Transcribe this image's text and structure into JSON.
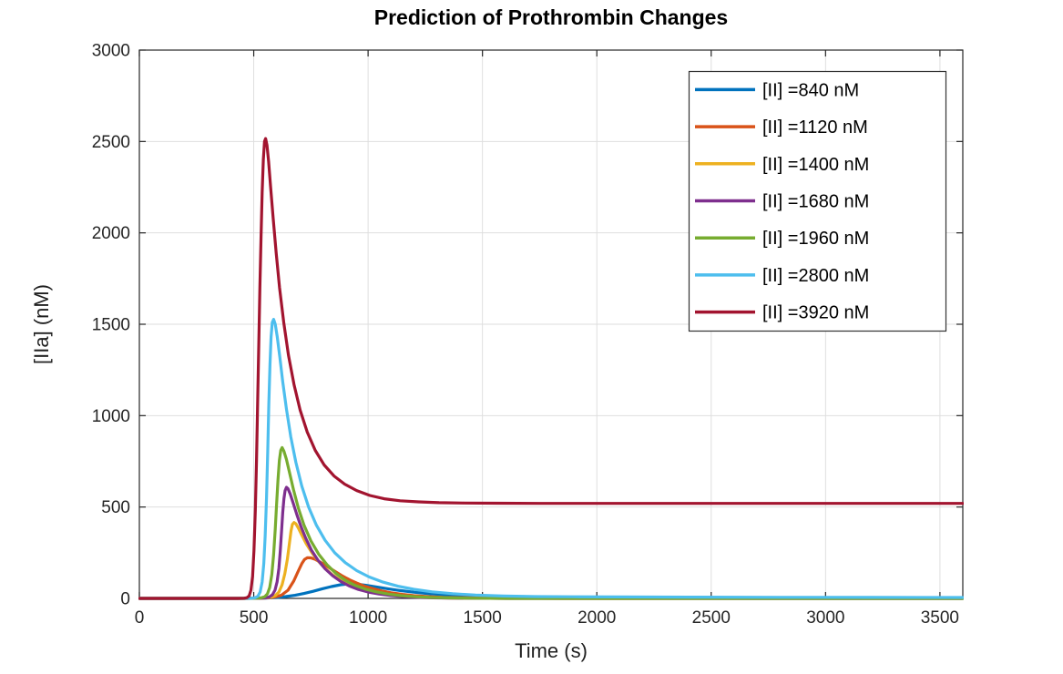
{
  "chart_data": {
    "type": "line",
    "title": "Prediction of Prothrombin Changes",
    "xlabel": "Time (s)",
    "ylabel": "[IIa] (nM)",
    "xlim": [
      0,
      3600
    ],
    "ylim": [
      0,
      3000
    ],
    "xticks": [
      0,
      500,
      1000,
      1500,
      2000,
      2500,
      3000,
      3500
    ],
    "yticks": [
      0,
      500,
      1000,
      1500,
      2000,
      2500,
      3000
    ],
    "grid": true,
    "legend_position": "top-right",
    "series": [
      {
        "name": "[II] =840 nM",
        "color": "#0072BD",
        "peak": {
          "t": 915,
          "value": 79
        },
        "points": [
          [
            0,
            0
          ],
          [
            420,
            0
          ],
          [
            500,
            1
          ],
          [
            550,
            2
          ],
          [
            600,
            5
          ],
          [
            640,
            10
          ],
          [
            680,
            17
          ],
          [
            720,
            27
          ],
          [
            760,
            39
          ],
          [
            800,
            53
          ],
          [
            840,
            65
          ],
          [
            880,
            75
          ],
          [
            915,
            79
          ],
          [
            950,
            78
          ],
          [
            990,
            72
          ],
          [
            1040,
            62
          ],
          [
            1090,
            52
          ],
          [
            1140,
            43
          ],
          [
            1200,
            34
          ],
          [
            1260,
            27
          ],
          [
            1330,
            20
          ],
          [
            1400,
            15
          ],
          [
            1500,
            10
          ],
          [
            1600,
            6
          ],
          [
            1700,
            4
          ],
          [
            1850,
            2
          ],
          [
            2000,
            1
          ],
          [
            2300,
            0.5
          ],
          [
            2700,
            0
          ],
          [
            3600,
            0
          ]
        ]
      },
      {
        "name": "[II] =1120 nM",
        "color": "#D95319",
        "peak": {
          "t": 735,
          "value": 223
        },
        "points": [
          [
            0,
            0
          ],
          [
            450,
            0
          ],
          [
            520,
            1
          ],
          [
            560,
            3
          ],
          [
            590,
            7
          ],
          [
            620,
            17
          ],
          [
            650,
            45
          ],
          [
            675,
            95
          ],
          [
            695,
            150
          ],
          [
            710,
            190
          ],
          [
            722,
            213
          ],
          [
            735,
            223
          ],
          [
            750,
            222
          ],
          [
            770,
            213
          ],
          [
            800,
            192
          ],
          [
            830,
            168
          ],
          [
            860,
            144
          ],
          [
            890,
            121
          ],
          [
            920,
            101
          ],
          [
            950,
            84
          ],
          [
            985,
            67
          ],
          [
            1020,
            54
          ],
          [
            1060,
            41
          ],
          [
            1100,
            31
          ],
          [
            1150,
            22
          ],
          [
            1200,
            15
          ],
          [
            1260,
            10
          ],
          [
            1330,
            6
          ],
          [
            1400,
            4
          ],
          [
            1500,
            2
          ],
          [
            1650,
            1
          ],
          [
            1850,
            0
          ],
          [
            3600,
            0
          ]
        ]
      },
      {
        "name": "[II] =1400 nM",
        "color": "#EDB120",
        "peak": {
          "t": 676,
          "value": 415
        },
        "points": [
          [
            0,
            0
          ],
          [
            460,
            0
          ],
          [
            525,
            1
          ],
          [
            555,
            3
          ],
          [
            577,
            7
          ],
          [
            595,
            16
          ],
          [
            610,
            35
          ],
          [
            624,
            75
          ],
          [
            636,
            135
          ],
          [
            647,
            215
          ],
          [
            656,
            300
          ],
          [
            663,
            370
          ],
          [
            669,
            405
          ],
          [
            676,
            415
          ],
          [
            684,
            408
          ],
          [
            695,
            385
          ],
          [
            710,
            347
          ],
          [
            730,
            298
          ],
          [
            755,
            248
          ],
          [
            783,
            203
          ],
          [
            813,
            163
          ],
          [
            845,
            128
          ],
          [
            880,
            99
          ],
          [
            915,
            76
          ],
          [
            955,
            56
          ],
          [
            1000,
            40
          ],
          [
            1045,
            28
          ],
          [
            1095,
            19
          ],
          [
            1150,
            12
          ],
          [
            1210,
            8
          ],
          [
            1280,
            4
          ],
          [
            1360,
            2
          ],
          [
            1460,
            1
          ],
          [
            1600,
            0
          ],
          [
            3600,
            0
          ]
        ]
      },
      {
        "name": "[II] =1680 nM",
        "color": "#7E2F8E",
        "peak": {
          "t": 640,
          "value": 608
        },
        "points": [
          [
            0,
            0
          ],
          [
            470,
            0
          ],
          [
            530,
            1
          ],
          [
            552,
            3
          ],
          [
            568,
            8
          ],
          [
            582,
            20
          ],
          [
            593,
            45
          ],
          [
            602,
            90
          ],
          [
            610,
            165
          ],
          [
            616,
            260
          ],
          [
            622,
            375
          ],
          [
            627,
            470
          ],
          [
            632,
            545
          ],
          [
            637,
            590
          ],
          [
            643,
            608
          ],
          [
            650,
            600
          ],
          [
            660,
            570
          ],
          [
            673,
            520
          ],
          [
            688,
            460
          ],
          [
            706,
            395
          ],
          [
            727,
            330
          ],
          [
            752,
            265
          ],
          [
            780,
            210
          ],
          [
            812,
            162
          ],
          [
            845,
            124
          ],
          [
            880,
            93
          ],
          [
            918,
            68
          ],
          [
            958,
            49
          ],
          [
            1000,
            35
          ],
          [
            1048,
            24
          ],
          [
            1098,
            16
          ],
          [
            1155,
            10
          ],
          [
            1215,
            6
          ],
          [
            1285,
            3
          ],
          [
            1360,
            2
          ],
          [
            1460,
            1
          ],
          [
            1600,
            0
          ],
          [
            3600,
            0
          ]
        ]
      },
      {
        "name": "[II] =1960 nM",
        "color": "#77AC30",
        "peak": {
          "t": 624,
          "value": 825
        },
        "points": [
          [
            0,
            0
          ],
          [
            460,
            0
          ],
          [
            510,
            1
          ],
          [
            532,
            3
          ],
          [
            548,
            9
          ],
          [
            560,
            25
          ],
          [
            570,
            60
          ],
          [
            579,
            130
          ],
          [
            587,
            240
          ],
          [
            594,
            380
          ],
          [
            600,
            520
          ],
          [
            606,
            650
          ],
          [
            612,
            755
          ],
          [
            618,
            810
          ],
          [
            624,
            825
          ],
          [
            632,
            806
          ],
          [
            643,
            760
          ],
          [
            657,
            685
          ],
          [
            674,
            595
          ],
          [
            695,
            495
          ],
          [
            720,
            400
          ],
          [
            750,
            315
          ],
          [
            785,
            240
          ],
          [
            820,
            185
          ],
          [
            858,
            138
          ],
          [
            898,
            101
          ],
          [
            942,
            72
          ],
          [
            988,
            51
          ],
          [
            1036,
            36
          ],
          [
            1088,
            24
          ],
          [
            1145,
            15
          ],
          [
            1210,
            9
          ],
          [
            1280,
            5
          ],
          [
            1360,
            3
          ],
          [
            1460,
            1
          ],
          [
            1620,
            0
          ],
          [
            3600,
            0
          ]
        ]
      },
      {
        "name": "[II] =2800 nM",
        "color": "#4DBEEE",
        "peak": {
          "t": 587,
          "value": 1527
        },
        "points": [
          [
            0,
            0
          ],
          [
            440,
            0
          ],
          [
            490,
            1
          ],
          [
            506,
            4
          ],
          [
            518,
            12
          ],
          [
            528,
            35
          ],
          [
            537,
            90
          ],
          [
            544,
            190
          ],
          [
            550,
            340
          ],
          [
            556,
            550
          ],
          [
            561,
            800
          ],
          [
            566,
            1060
          ],
          [
            571,
            1280
          ],
          [
            576,
            1430
          ],
          [
            581,
            1510
          ],
          [
            587,
            1527
          ],
          [
            594,
            1500
          ],
          [
            603,
            1430
          ],
          [
            614,
            1320
          ],
          [
            627,
            1185
          ],
          [
            643,
            1035
          ],
          [
            662,
            885
          ],
          [
            684,
            745
          ],
          [
            710,
            615
          ],
          [
            740,
            500
          ],
          [
            774,
            400
          ],
          [
            812,
            318
          ],
          [
            854,
            250
          ],
          [
            900,
            196
          ],
          [
            950,
            152
          ],
          [
            1005,
            117
          ],
          [
            1065,
            89
          ],
          [
            1130,
            67
          ],
          [
            1200,
            50
          ],
          [
            1280,
            36
          ],
          [
            1370,
            26
          ],
          [
            1470,
            18
          ],
          [
            1590,
            13
          ],
          [
            1730,
            10
          ],
          [
            1900,
            9
          ],
          [
            2100,
            8
          ],
          [
            2400,
            7
          ],
          [
            2800,
            6
          ],
          [
            3200,
            5.5
          ],
          [
            3600,
            5
          ]
        ]
      },
      {
        "name": "[II] =3920 nM",
        "color": "#A2142F",
        "peak": {
          "t": 552,
          "value": 2516
        },
        "steady_state": 520,
        "points": [
          [
            0,
            0
          ],
          [
            430,
            0
          ],
          [
            458,
            1
          ],
          [
            470,
            4
          ],
          [
            480,
            14
          ],
          [
            488,
            45
          ],
          [
            495,
            120
          ],
          [
            501,
            260
          ],
          [
            507,
            480
          ],
          [
            512,
            750
          ],
          [
            517,
            1060
          ],
          [
            522,
            1390
          ],
          [
            527,
            1700
          ],
          [
            532,
            1980
          ],
          [
            537,
            2220
          ],
          [
            542,
            2400
          ],
          [
            547,
            2500
          ],
          [
            552,
            2516
          ],
          [
            558,
            2480
          ],
          [
            565,
            2390
          ],
          [
            574,
            2250
          ],
          [
            585,
            2080
          ],
          [
            598,
            1890
          ],
          [
            613,
            1700
          ],
          [
            631,
            1510
          ],
          [
            652,
            1330
          ],
          [
            676,
            1170
          ],
          [
            703,
            1030
          ],
          [
            734,
            910
          ],
          [
            769,
            810
          ],
          [
            808,
            730
          ],
          [
            851,
            670
          ],
          [
            898,
            625
          ],
          [
            950,
            590
          ],
          [
            1008,
            563
          ],
          [
            1070,
            545
          ],
          [
            1140,
            534
          ],
          [
            1220,
            528
          ],
          [
            1310,
            524
          ],
          [
            1420,
            522
          ],
          [
            1560,
            521
          ],
          [
            1750,
            520
          ],
          [
            2000,
            520
          ],
          [
            2400,
            520
          ],
          [
            2900,
            520
          ],
          [
            3600,
            520
          ]
        ]
      }
    ]
  },
  "style": {
    "background_color": "#FFFFFF",
    "axis_color": "#262626",
    "grid_color": "#DEDEDE",
    "tick_label_color": "#262626",
    "legend_border_color": "#333333",
    "legend_background": "#FFFFFF"
  }
}
